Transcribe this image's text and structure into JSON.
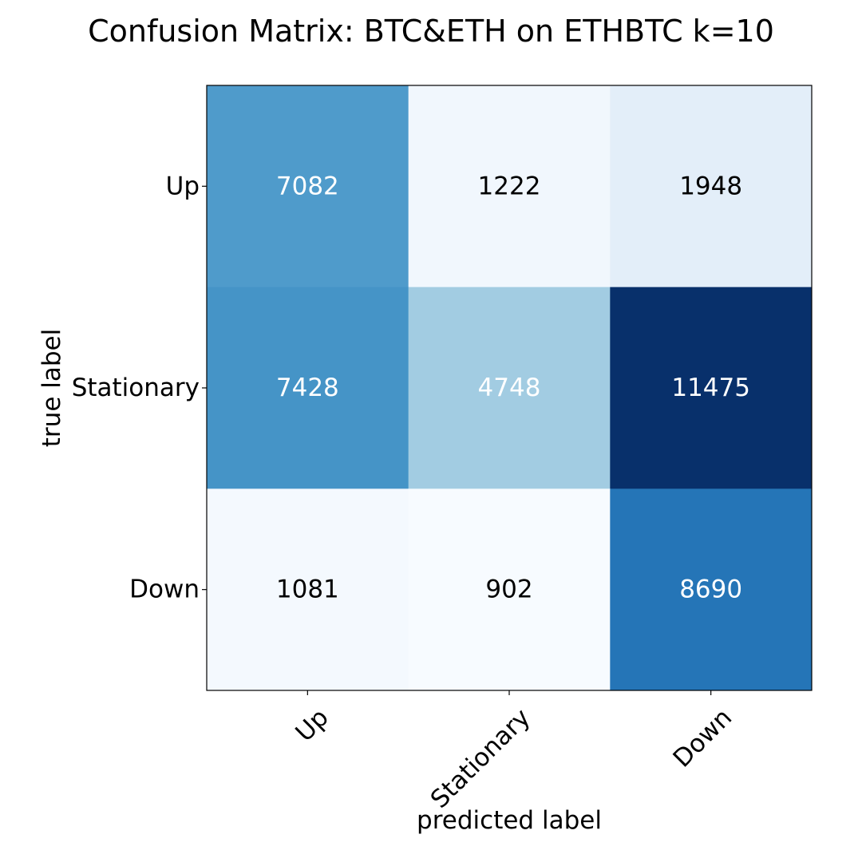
{
  "chart_data": {
    "type": "heatmap",
    "title": "Confusion Matrix: BTC&ETH on ETHBTC k=10",
    "xlabel": "predicted label",
    "ylabel": "true label",
    "x_categories": [
      "Up",
      "Stationary",
      "Down"
    ],
    "y_categories": [
      "Up",
      "Stationary",
      "Down"
    ],
    "values": [
      [
        7082,
        1222,
        1948
      ],
      [
        7428,
        4748,
        11475
      ],
      [
        1081,
        902,
        8690
      ]
    ],
    "colormap": "Blues",
    "value_range": [
      902,
      11475
    ],
    "text_color_light": "#ffffff",
    "text_color_dark": "#000000",
    "grid": false
  }
}
